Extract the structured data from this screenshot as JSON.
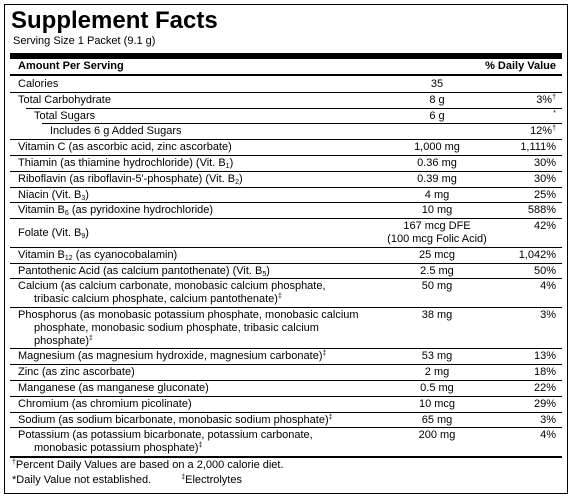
{
  "title": "Supplement Facts",
  "serving_size": "Serving Size 1 Packet (9.1 g)",
  "header": {
    "amount": "Amount Per Serving",
    "daily_value": "% Daily Value"
  },
  "rows": [
    {
      "indent": 0,
      "name": [
        [
          "Calories"
        ]
      ],
      "amount": [
        "35"
      ],
      "daily_value": []
    },
    {
      "indent": 0,
      "name": [
        [
          "Total Carbohydrate"
        ]
      ],
      "amount": [
        "8 g"
      ],
      "daily_value": [
        "3%",
        {
          "sup": "†"
        }
      ]
    },
    {
      "indent": 1,
      "name": [
        [
          "Total Sugars"
        ]
      ],
      "amount": [
        "6 g"
      ],
      "daily_value": [
        {
          "sup": "*"
        }
      ]
    },
    {
      "indent": 2,
      "name": [
        [
          "Includes 6 g Added Sugars"
        ]
      ],
      "amount": [],
      "daily_value": [
        "12%",
        {
          "sup": "†"
        }
      ]
    },
    {
      "indent": 0,
      "name": [
        [
          "Vitamin C (as ascorbic acid, zinc ascorbate)"
        ]
      ],
      "amount": [
        "1,000 mg"
      ],
      "daily_value": [
        "1,111%"
      ]
    },
    {
      "indent": 0,
      "name": [
        [
          "Thiamin (as thiamine hydrochloride) (Vit. B",
          {
            "sub": "1"
          },
          ")"
        ]
      ],
      "amount": [
        "0.36 mg"
      ],
      "daily_value": [
        "30%"
      ]
    },
    {
      "indent": 0,
      "name": [
        [
          "Riboflavin (as riboflavin-5'-phosphate) (Vit. B",
          {
            "sub": "2"
          },
          ")"
        ]
      ],
      "amount": [
        "0.39 mg"
      ],
      "daily_value": [
        "30%"
      ]
    },
    {
      "indent": 0,
      "name": [
        [
          "Niacin (Vit. B",
          {
            "sub": "3"
          },
          ")"
        ]
      ],
      "amount": [
        "4 mg"
      ],
      "daily_value": [
        "25%"
      ]
    },
    {
      "indent": 0,
      "name": [
        [
          "Vitamin B",
          {
            "sub": "6"
          },
          " (as pyridoxine hydrochloride)"
        ]
      ],
      "amount": [
        "10 mg"
      ],
      "daily_value": [
        "588%"
      ]
    },
    {
      "indent": 0,
      "name": [
        [
          "Folate (Vit. B",
          {
            "sub": "9"
          },
          ")"
        ]
      ],
      "amount": [
        "167 mcg DFE",
        "(100 mcg Folic Acid)"
      ],
      "daily_value": [
        "42%"
      ]
    },
    {
      "indent": 0,
      "name": [
        [
          "Vitamin B",
          {
            "sub": "12"
          },
          " (as cyanocobalamin)"
        ]
      ],
      "amount": [
        "25 mcg"
      ],
      "daily_value": [
        "1,042%"
      ]
    },
    {
      "indent": 0,
      "name": [
        [
          "Pantothenic Acid (as calcium pantothenate) (Vit. B",
          {
            "sub": "5"
          },
          ")"
        ]
      ],
      "amount": [
        "2.5 mg"
      ],
      "daily_value": [
        "50%"
      ]
    },
    {
      "indent": 0,
      "name": [
        [
          "Calcium (as calcium carbonate, monobasic calcium phosphate,"
        ],
        [
          "tribasic calcium phosphate, calcium pantothenate)",
          {
            "sup": "‡"
          }
        ]
      ],
      "amount": [
        "50 mg"
      ],
      "daily_value": [
        "4%"
      ]
    },
    {
      "indent": 0,
      "name": [
        [
          "Phosphorus (as monobasic potassium phosphate, monobasic calcium"
        ],
        [
          "phosphate, monobasic sodium phosphate, tribasic calcium"
        ],
        [
          "phosphate)",
          {
            "sup": "‡"
          }
        ]
      ],
      "amount": [
        "38 mg"
      ],
      "daily_value": [
        "3%"
      ]
    },
    {
      "indent": 0,
      "name": [
        [
          "Magnesium (as magnesium hydroxide, magnesium carbonate)",
          {
            "sup": "‡"
          }
        ]
      ],
      "amount": [
        "53 mg"
      ],
      "daily_value": [
        "13%"
      ]
    },
    {
      "indent": 0,
      "name": [
        [
          "Zinc (as zinc ascorbate)"
        ]
      ],
      "amount": [
        "2 mg"
      ],
      "daily_value": [
        "18%"
      ]
    },
    {
      "indent": 0,
      "name": [
        [
          "Manganese (as manganese gluconate)"
        ]
      ],
      "amount": [
        "0.5 mg"
      ],
      "daily_value": [
        "22%"
      ]
    },
    {
      "indent": 0,
      "name": [
        [
          "Chromium (as chromium picolinate)"
        ]
      ],
      "amount": [
        "10 mcg"
      ],
      "daily_value": [
        "29%"
      ]
    },
    {
      "indent": 0,
      "name": [
        [
          "Sodium (as sodium bicarbonate, monobasic sodium phosphate)",
          {
            "sup": "‡"
          }
        ]
      ],
      "amount": [
        "65 mg"
      ],
      "daily_value": [
        "3%"
      ]
    },
    {
      "indent": 0,
      "name": [
        [
          "Potassium (as potassium bicarbonate, potassium carbonate,"
        ],
        [
          "monobasic potassium phosphate)",
          {
            "sup": "‡"
          }
        ]
      ],
      "amount": [
        "200 mg"
      ],
      "daily_value": [
        "4%"
      ]
    }
  ],
  "footnotes": [
    [
      [
        {
          "sup": "†"
        },
        "Percent Daily Values are based on a 2,000 calorie diet."
      ]
    ],
    [
      [
        "*Daily Value not established."
      ],
      [
        {
          "sup": "‡"
        },
        "Electrolytes"
      ]
    ]
  ]
}
